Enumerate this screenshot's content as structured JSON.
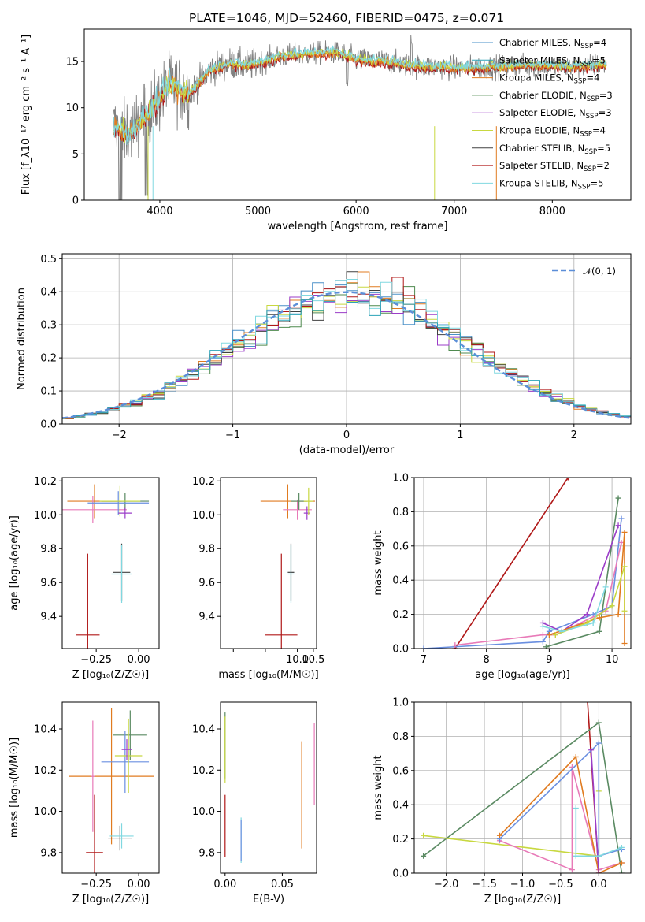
{
  "figure_title": "PLATE=1046, MJD=52460, FIBERID=0475, z=0.071",
  "colors": {
    "Chabrier MILES": "#4a90c8",
    "Salpeter MILES": "#2aa3b8",
    "Kroupa MILES": "#e07b20",
    "Chabrier ELODIE": "#4f8a4f",
    "Salpeter ELODIE": "#9b3dc8",
    "Kroupa ELODIE": "#c8d840",
    "Chabrier STELIB": "#404040",
    "Salpeter STELIB": "#b01818",
    "Kroupa STELIB": "#80d8e0",
    "gaussian": "#5b8ed8",
    "pink": "#e87ab8",
    "blue": "#6a8fe0",
    "green": "#5a8a62"
  },
  "chart_data": [
    {
      "id": "spectrum",
      "type": "line",
      "title": "PLATE=1046, MJD=52460, FIBERID=0475, z=0.071",
      "xlabel": "wavelength [Angstrom, rest frame]",
      "ylabel": "Flux [f_λ10⁻¹⁷ erg cm⁻² s⁻¹ A⁻¹]",
      "xlim": [
        3230,
        8800
      ],
      "ylim": [
        0,
        18.5
      ],
      "xticks": [
        4000,
        5000,
        6000,
        7000,
        8000
      ],
      "yticks": [
        0,
        5,
        10,
        15
      ],
      "legend_position": "top-right",
      "legend": [
        {
          "base": "Chabrier MILES, N",
          "sub": "SSP",
          "tail": "=4"
        },
        {
          "base": "Salpeter MILES, N",
          "sub": "SSP",
          "tail": "=5"
        },
        {
          "base": "Kroupa MILES, N",
          "sub": "SSP",
          "tail": "=4"
        },
        {
          "base": "Chabrier ELODIE, N",
          "sub": "SSP",
          "tail": "=3"
        },
        {
          "base": "Salpeter ELODIE, N",
          "sub": "SSP",
          "tail": "=3"
        },
        {
          "base": "Kroupa ELODIE, N",
          "sub": "SSP",
          "tail": "=4"
        },
        {
          "base": "Chabrier STELIB, N",
          "sub": "SSP",
          "tail": "=5"
        },
        {
          "base": "Salpeter STELIB, N",
          "sub": "SSP",
          "tail": "=2"
        },
        {
          "base": "Kroupa STELIB, N",
          "sub": "SSP",
          "tail": "=5"
        }
      ],
      "continuum": [
        [
          3530,
          8.0
        ],
        [
          3700,
          7.0
        ],
        [
          3800,
          8.5
        ],
        [
          3900,
          9.5
        ],
        [
          4000,
          11.0
        ],
        [
          4100,
          12.5
        ],
        [
          4300,
          11.5
        ],
        [
          4500,
          14.0
        ],
        [
          4700,
          14.8
        ],
        [
          4900,
          14.5
        ],
        [
          5200,
          15.5
        ],
        [
          5500,
          15.8
        ],
        [
          5800,
          16.0
        ],
        [
          6000,
          15.2
        ],
        [
          6300,
          15.0
        ],
        [
          6600,
          14.5
        ],
        [
          7000,
          14.3
        ],
        [
          7400,
          14.4
        ],
        [
          7800,
          14.6
        ],
        [
          8200,
          14.4
        ],
        [
          8550,
          14.7
        ]
      ]
    },
    {
      "id": "residuals",
      "type": "histogram",
      "xlabel": "(data-model)/error",
      "ylabel": "Normed distribution",
      "xlim": [
        -2.5,
        2.5
      ],
      "ylim": [
        0,
        0.515
      ],
      "xticks": [
        -2,
        -1,
        0,
        1,
        2
      ],
      "xticklabels": [
        "−2",
        "−1",
        "0",
        "1",
        "2"
      ],
      "yticks": [
        0,
        0.1,
        0.2,
        0.3,
        0.4,
        0.5
      ],
      "yticklabels": [
        "0.0",
        "0.1",
        "0.2",
        "0.3",
        "0.4",
        "0.5"
      ],
      "bin_width": 0.1,
      "legend_label": "𝒩(0, 1)",
      "grid": true
    },
    {
      "id": "age_vs_z",
      "type": "errorbar",
      "xlabel": "Z [log₁₀(Z/Z☉)]",
      "ylabel": "age  [log₁₀(age/yr)]",
      "xlim": [
        -0.45,
        0.12
      ],
      "ylim": [
        9.21,
        10.22
      ],
      "xticks": [
        -0.25,
        0.0
      ],
      "xticklabels": [
        "−0.25",
        "0.00"
      ],
      "yticks": [
        9.4,
        9.6,
        9.8,
        10.0,
        10.2
      ],
      "yticklabels": [
        "9.4",
        "9.6",
        "9.8",
        "10.0",
        "10.2"
      ],
      "points": [
        {
          "c": "#e07b20",
          "x": -0.26,
          "xerr": 0.16,
          "y": 10.08,
          "yerr": 0.1
        },
        {
          "c": "#e87ab8",
          "x": -0.27,
          "xerr": 0.2,
          "y": 10.03,
          "yerr": 0.08
        },
        {
          "c": "#5a8a62",
          "x": -0.08,
          "xerr": 0.14,
          "y": 10.08,
          "yerr": 0.05
        },
        {
          "c": "#6a8fe0",
          "x": -0.12,
          "xerr": 0.18,
          "y": 10.07,
          "yerr": 0.07
        },
        {
          "c": "#c8d840",
          "x": -0.11,
          "xerr": 0.12,
          "y": 10.08,
          "yerr": 0.09
        },
        {
          "c": "#9b3dc8",
          "x": -0.08,
          "xerr": 0.04,
          "y": 10.01,
          "yerr": 0.03
        },
        {
          "c": "#404040",
          "x": -0.1,
          "xerr": 0.05,
          "y": 9.66,
          "yerr": 0.17
        },
        {
          "c": "#80d8e0",
          "x": -0.1,
          "xerr": 0.06,
          "y": 9.65,
          "yerr": 0.17
        },
        {
          "c": "#b01818",
          "x": -0.3,
          "xerr": 0.07,
          "y": 9.29,
          "yerr": 0.48
        }
      ]
    },
    {
      "id": "age_vs_mass",
      "type": "errorbar",
      "xlabel": "mass [log₁₀(M/M☉)]",
      "xlim": [
        7.6,
        10.6
      ],
      "ylim": [
        9.21,
        10.22
      ],
      "xticks": [
        8.0,
        9.0,
        10.0,
        10.5
      ],
      "xticklabels": [
        "",
        "",
        "10.0",
        "10.5"
      ],
      "yticks": [
        9.4,
        9.6,
        9.8,
        10.0,
        10.2
      ],
      "yticklabels": [
        "9.4",
        "9.6",
        "9.8",
        "10.0",
        "10.2"
      ],
      "points": [
        {
          "c": "#e07b20",
          "x": 9.7,
          "xerr": 0.85,
          "y": 10.08,
          "yerr": 0.1
        },
        {
          "c": "#e87ab8",
          "x": 10.0,
          "xerr": 0.45,
          "y": 10.03,
          "yerr": 0.06
        },
        {
          "c": "#5a8a62",
          "x": 10.05,
          "xerr": 0.25,
          "y": 10.08,
          "yerr": 0.05
        },
        {
          "c": "#9b3dc8",
          "x": 10.3,
          "xerr": 0.1,
          "y": 10.01,
          "yerr": 0.04
        },
        {
          "c": "#c8d840",
          "x": 10.35,
          "xerr": 0.15,
          "y": 10.08,
          "yerr": 0.08
        },
        {
          "c": "#404040",
          "x": 9.8,
          "xerr": 0.1,
          "y": 9.66,
          "yerr": 0.17
        },
        {
          "c": "#80d8e0",
          "x": 9.8,
          "xerr": 0.1,
          "y": 9.65,
          "yerr": 0.17
        },
        {
          "c": "#b01818",
          "x": 9.5,
          "xerr": 0.5,
          "y": 9.29,
          "yerr": 0.48
        }
      ]
    },
    {
      "id": "weight_vs_age",
      "type": "line",
      "xlabel": "age  [log₁₀(age/yr)]",
      "ylabel": "mass weight",
      "xlim": [
        6.85,
        10.3
      ],
      "ylim": [
        0,
        1
      ],
      "xticks": [
        7,
        8,
        9,
        10
      ],
      "xticklabels": [
        "7",
        "8",
        "9",
        "10"
      ],
      "yticks": [
        0,
        0.2,
        0.4,
        0.6,
        0.8,
        1.0
      ],
      "yticklabels": [
        "0.0",
        "0.2",
        "0.4",
        "0.6",
        "0.8",
        "1.0"
      ],
      "grid": true,
      "series": [
        {
          "c": "#b01818",
          "points": [
            [
              7.5,
              0.0
            ],
            [
              9.3,
              1.0
            ]
          ]
        },
        {
          "c": "#6a8fe0",
          "points": [
            [
              7.0,
              0.0
            ],
            [
              8.9,
              0.04
            ],
            [
              9.0,
              0.1
            ],
            [
              9.7,
              0.2
            ],
            [
              10.0,
              0.25
            ],
            [
              10.15,
              0.76
            ]
          ]
        },
        {
          "c": "#e87ab8",
          "points": [
            [
              7.5,
              0.02
            ],
            [
              8.9,
              0.08
            ],
            [
              9.1,
              0.08
            ],
            [
              9.9,
              0.22
            ],
            [
              10.15,
              0.62
            ]
          ]
        },
        {
          "c": "#5a8a62",
          "points": [
            [
              8.95,
              0.01
            ],
            [
              9.8,
              0.1
            ],
            [
              10.1,
              0.88
            ]
          ]
        },
        {
          "c": "#9b3dc8",
          "points": [
            [
              8.9,
              0.15
            ],
            [
              9.2,
              0.1
            ],
            [
              9.6,
              0.2
            ],
            [
              10.1,
              0.72
            ]
          ]
        },
        {
          "c": "#e07b20",
          "points": [
            [
              9.0,
              0.08
            ],
            [
              9.8,
              0.18
            ],
            [
              10.1,
              0.2
            ],
            [
              10.2,
              0.68
            ],
            [
              10.2,
              0.03
            ]
          ]
        },
        {
          "c": "#c8d840",
          "points": [
            [
              9.1,
              0.08
            ],
            [
              9.6,
              0.15
            ],
            [
              10.0,
              0.25
            ],
            [
              10.2,
              0.48
            ],
            [
              10.2,
              0.22
            ]
          ]
        },
        {
          "c": "#80d8e0",
          "points": [
            [
              8.9,
              0.13
            ],
            [
              9.2,
              0.1
            ],
            [
              9.7,
              0.15
            ],
            [
              9.9,
              0.36
            ]
          ]
        }
      ]
    },
    {
      "id": "mass_vs_z",
      "type": "errorbar",
      "xlabel": "Z [log₁₀(Z/Z☉)]",
      "ylabel": "mass [log₁₀(M/M☉)]",
      "xlim": [
        -0.45,
        0.12
      ],
      "ylim": [
        9.7,
        10.53
      ],
      "xticks": [
        -0.25,
        0.0
      ],
      "xticklabels": [
        "−0.25",
        "0.00"
      ],
      "yticks": [
        9.8,
        10.0,
        10.2,
        10.4
      ],
      "yticklabels": [
        "9.8",
        "10.0",
        "10.2",
        "10.4"
      ],
      "points": [
        {
          "c": "#e07b20",
          "x": -0.16,
          "xerr": 0.25,
          "y": 10.17,
          "yerr": 0.33
        },
        {
          "c": "#e87ab8",
          "x": -0.27,
          "xerr": 0.01,
          "y": 10.17,
          "yerr": 0.27
        },
        {
          "c": "#5a8a62",
          "x": -0.05,
          "xerr": 0.1,
          "y": 10.37,
          "yerr": 0.12
        },
        {
          "c": "#6a8fe0",
          "x": -0.08,
          "xerr": 0.14,
          "y": 10.24,
          "yerr": 0.15
        },
        {
          "c": "#c8d840",
          "x": -0.06,
          "xerr": 0.08,
          "y": 10.27,
          "yerr": 0.18
        },
        {
          "c": "#9b3dc8",
          "x": -0.07,
          "xerr": 0.03,
          "y": 10.3,
          "yerr": 0.05
        },
        {
          "c": "#404040",
          "x": -0.11,
          "xerr": 0.07,
          "y": 9.87,
          "yerr": 0.06
        },
        {
          "c": "#80d8e0",
          "x": -0.1,
          "xerr": 0.07,
          "y": 9.88,
          "yerr": 0.06
        },
        {
          "c": "#b01818",
          "x": -0.26,
          "xerr": 0.05,
          "y": 9.8,
          "yerr": 0.28
        }
      ]
    },
    {
      "id": "mass_vs_ebv",
      "type": "errorbar",
      "xlabel": "E(B-V)",
      "xlim": [
        -0.004,
        0.08
      ],
      "ylim": [
        9.7,
        10.53
      ],
      "xticks": [
        0.0,
        0.05
      ],
      "xticklabels": [
        "0.00",
        "0.05"
      ],
      "yticks": [
        9.8,
        10.0,
        10.2,
        10.4
      ],
      "yticklabels": [
        "9.8",
        "10.0",
        "10.2",
        "10.4"
      ],
      "points": [
        {
          "c": "#e87ab8",
          "x": 0.078,
          "xerr": 0,
          "y": 10.23,
          "yerr": 0.2
        },
        {
          "c": "#e07b20",
          "x": 0.067,
          "xerr": 0,
          "y": 10.08,
          "yerr": 0.26
        },
        {
          "c": "#5a8a62",
          "x": 0.0,
          "xerr": 0,
          "y": 10.32,
          "yerr": 0.16
        },
        {
          "c": "#c8d840",
          "x": 0.0,
          "xerr": 0,
          "y": 10.3,
          "yerr": 0.16
        },
        {
          "c": "#b01818",
          "x": 0.0,
          "xerr": 0,
          "y": 9.93,
          "yerr": 0.15
        },
        {
          "c": "#80d8e0",
          "x": 0.014,
          "xerr": 0,
          "y": 9.86,
          "yerr": 0.11
        },
        {
          "c": "#6a8fe0",
          "x": 0.014,
          "xerr": 0,
          "y": 9.86,
          "yerr": 0.1
        }
      ]
    },
    {
      "id": "weight_vs_z",
      "type": "line",
      "xlabel": "Z [log₁₀(Z/Z☉)]",
      "ylabel": "mass weight",
      "xlim": [
        -2.42,
        0.42
      ],
      "ylim": [
        0,
        1
      ],
      "xticks": [
        -2.0,
        -1.5,
        -1.0,
        -0.5,
        0.0
      ],
      "xticklabels": [
        "−2.0",
        "−1.5",
        "−1.0",
        "−0.5",
        "0.0"
      ],
      "yticks": [
        0,
        0.2,
        0.4,
        0.6,
        0.8,
        1.0
      ],
      "yticklabels": [
        "0.0",
        "0.2",
        "0.4",
        "0.6",
        "0.8",
        "1.0"
      ],
      "grid": true,
      "series": [
        {
          "c": "#b01818",
          "points": [
            [
              -0.15,
              1.02
            ],
            [
              0.0,
              0.0
            ]
          ]
        },
        {
          "c": "#5a8a62",
          "points": [
            [
              -2.3,
              0.1
            ],
            [
              0.0,
              0.88
            ],
            [
              0.3,
              0.0
            ]
          ]
        },
        {
          "c": "#c8d840",
          "points": [
            [
              -2.3,
              0.22
            ],
            [
              0.0,
              0.1
            ],
            [
              0.0,
              0.48
            ]
          ]
        },
        {
          "c": "#e87ab8",
          "points": [
            [
              -1.3,
              0.19
            ],
            [
              -0.35,
              0.02
            ],
            [
              -0.35,
              0.62
            ],
            [
              0.0,
              0.02
            ],
            [
              0.3,
              0.06
            ]
          ]
        },
        {
          "c": "#6a8fe0",
          "points": [
            [
              -1.3,
              0.2
            ],
            [
              0.0,
              0.76
            ],
            [
              0.0,
              0.1
            ],
            [
              0.3,
              0.14
            ]
          ]
        },
        {
          "c": "#e07b20",
          "points": [
            [
              -1.3,
              0.22
            ],
            [
              -0.3,
              0.68
            ],
            [
              0.0,
              0.0
            ],
            [
              0.3,
              0.06
            ]
          ]
        },
        {
          "c": "#9b3dc8",
          "points": [
            [
              -0.1,
              0.72
            ],
            [
              0.0,
              0.0
            ]
          ]
        },
        {
          "c": "#80d8e0",
          "points": [
            [
              -0.3,
              0.38
            ],
            [
              -0.3,
              0.1
            ],
            [
              0.0,
              0.1
            ],
            [
              0.3,
              0.15
            ]
          ]
        }
      ]
    }
  ]
}
